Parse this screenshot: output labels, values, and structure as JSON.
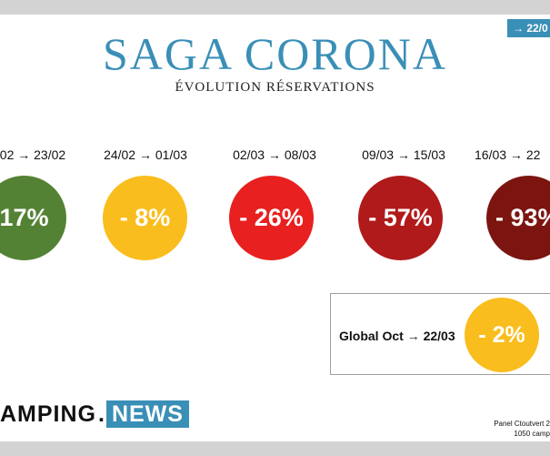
{
  "header": {
    "date_badge": "→ 22/0"
  },
  "title": "SAGA CORONA",
  "subtitle": "ÉVOLUTION RÉSERVATIONS",
  "weeks": [
    {
      "period": "02 → 23/02",
      "value": "17%",
      "color": "#548234"
    },
    {
      "period": "24/02 → 01/03",
      "value": "- 8%",
      "color": "#f9bd1d"
    },
    {
      "period": "02/03 → 08/03",
      "value": "- 26%",
      "color": "#e82020"
    },
    {
      "period": "09/03 → 15/03",
      "value": "- 57%",
      "color": "#b01a1a"
    },
    {
      "period": "16/03 → 22",
      "value": "- 93%",
      "color": "#7c1510"
    }
  ],
  "global": {
    "label": "Global Oct → 22/03",
    "value": "- 2%",
    "color": "#f9bd1d"
  },
  "logo": {
    "left": "AMPING",
    "right": "NEWS"
  },
  "footnote": {
    "line1": "Panel Ctoutvert 2",
    "line2": "1050 camp"
  }
}
